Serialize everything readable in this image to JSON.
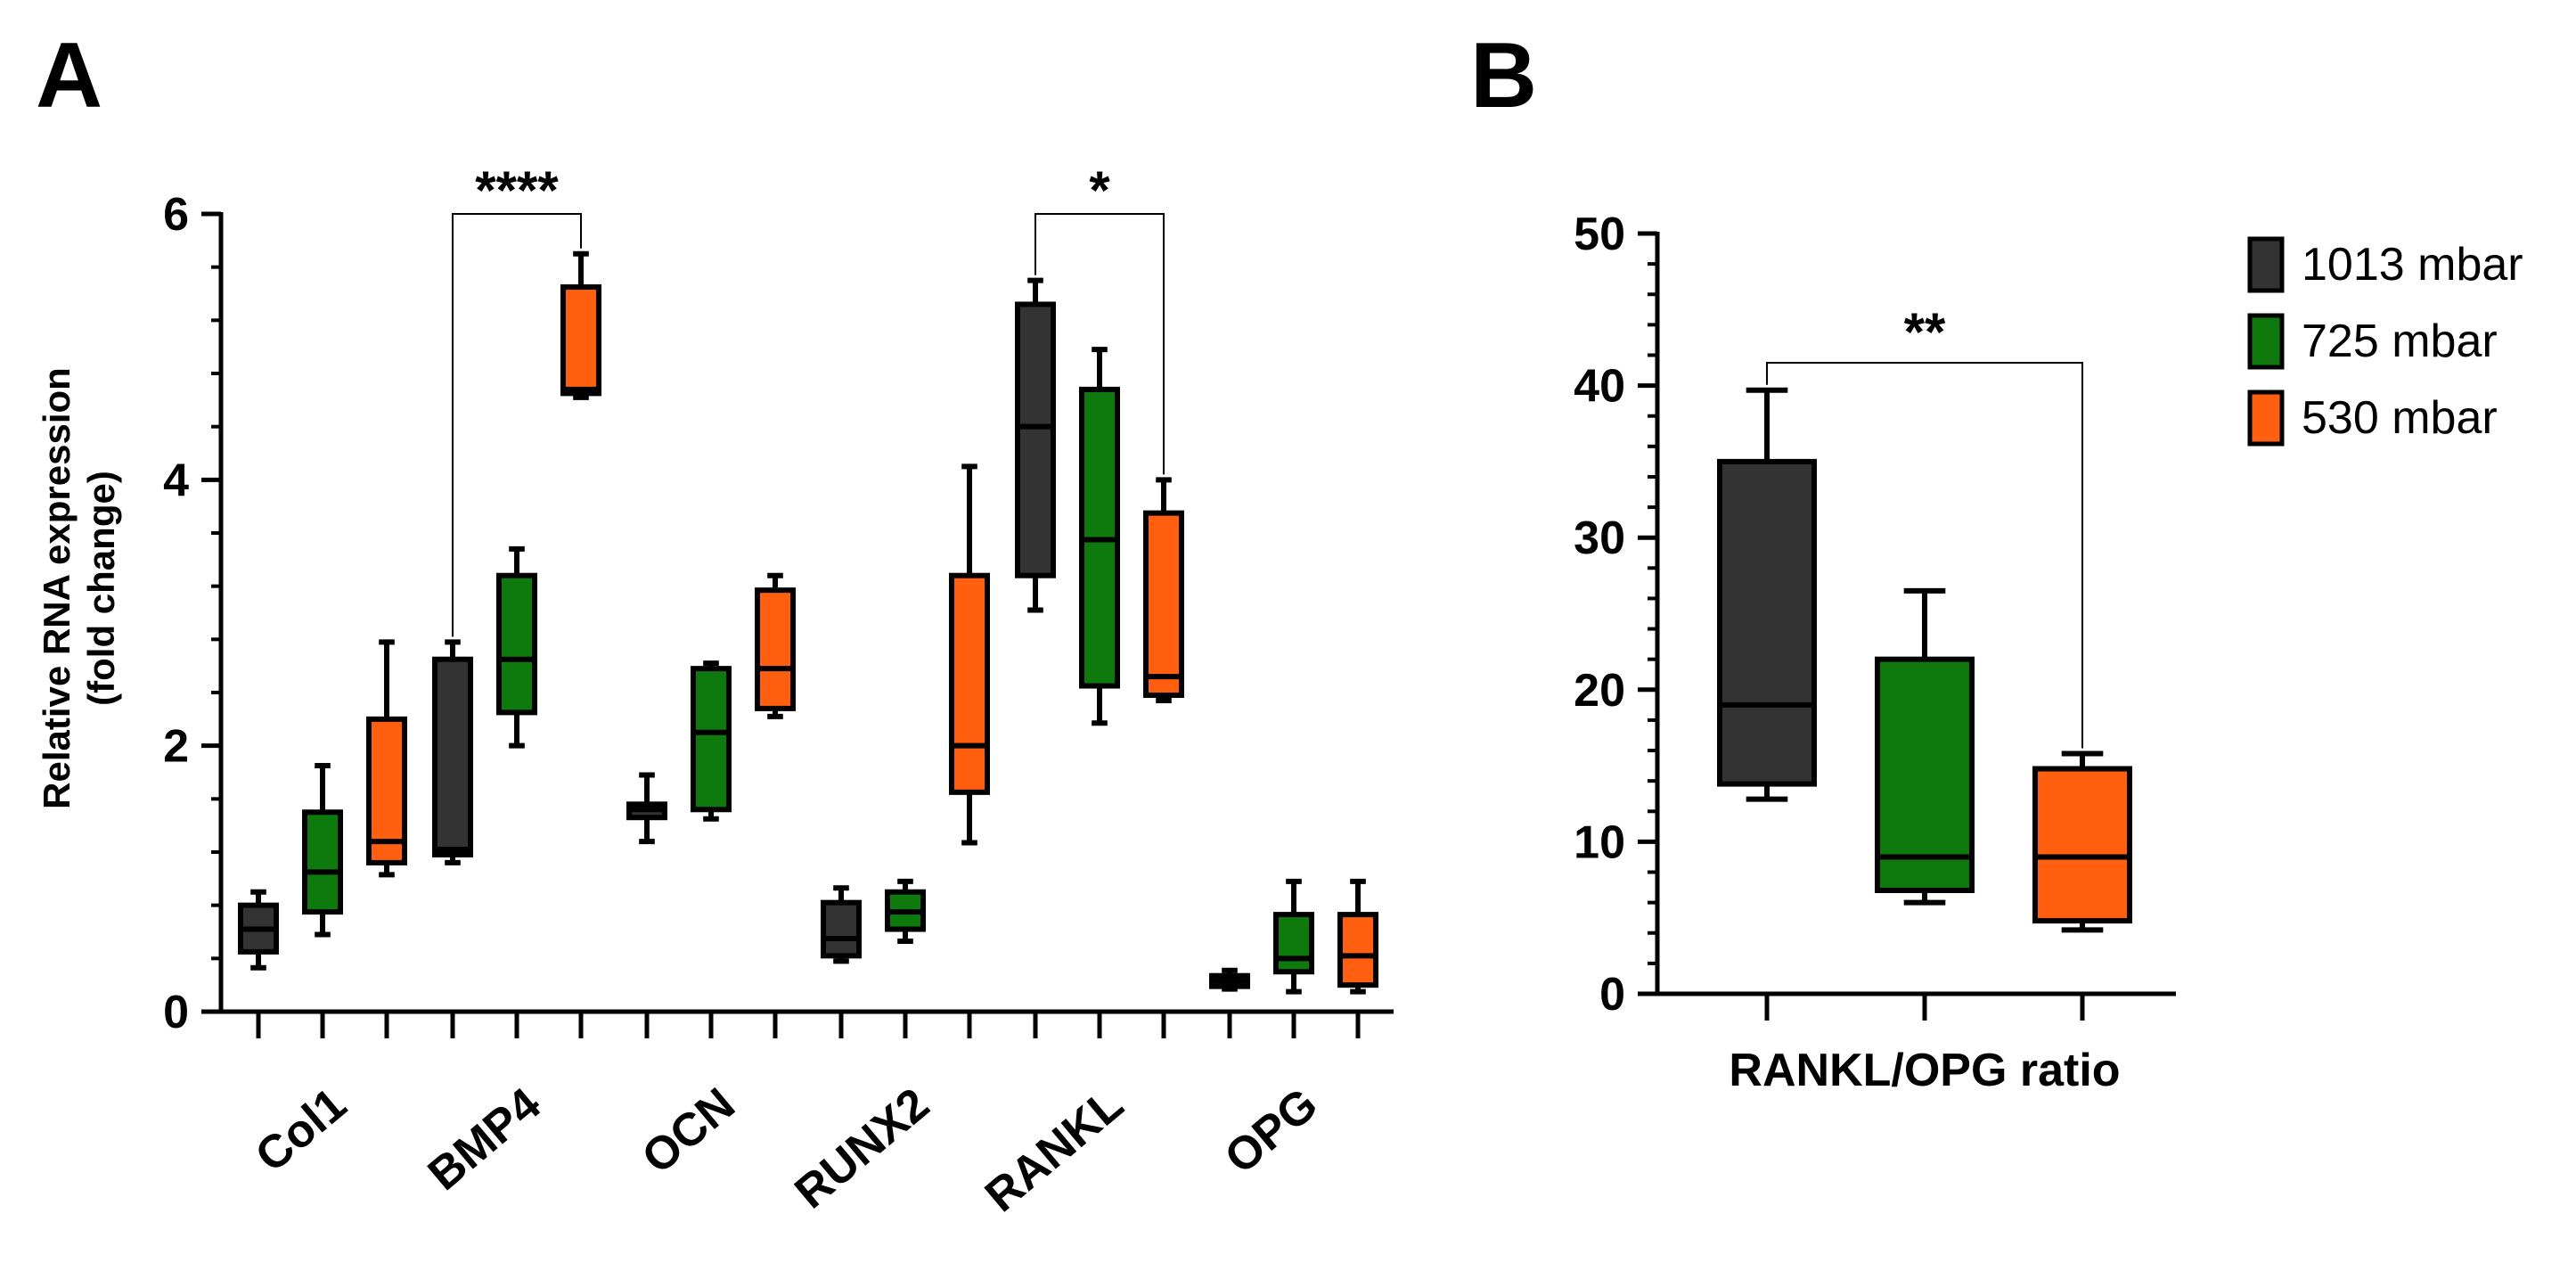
{
  "chart_data": [
    {
      "panel": "A",
      "type": "box",
      "title": "",
      "ylabel": "Relative RNA expression",
      "ylabel2": "(fold change)",
      "ylim": [
        0,
        6
      ],
      "yticks": [
        0,
        2,
        4,
        6
      ],
      "categories": [
        "Col1",
        "BMP4",
        "OCN",
        "RUNX2",
        "RANKL",
        "OPG"
      ],
      "series": [
        {
          "name": "1013 mbar",
          "color": "#333333",
          "boxes": [
            {
              "min": 0.33,
              "q1": 0.45,
              "median": 0.62,
              "q3": 0.8,
              "max": 0.9
            },
            {
              "min": 1.12,
              "q1": 1.18,
              "median": 1.22,
              "q3": 2.65,
              "max": 2.78
            },
            {
              "min": 1.28,
              "q1": 1.46,
              "median": 1.52,
              "q3": 1.56,
              "max": 1.78
            },
            {
              "min": 0.38,
              "q1": 0.42,
              "median": 0.55,
              "q3": 0.82,
              "max": 0.93
            },
            {
              "min": 3.02,
              "q1": 3.28,
              "median": 4.4,
              "q3": 5.32,
              "max": 5.5
            },
            {
              "min": 0.17,
              "q1": 0.19,
              "median": 0.23,
              "q3": 0.27,
              "max": 0.31
            }
          ]
        },
        {
          "name": "725 mbar",
          "color": "#0e7a0e",
          "boxes": [
            {
              "min": 0.58,
              "q1": 0.75,
              "median": 1.05,
              "q3": 1.5,
              "max": 1.85
            },
            {
              "min": 2.0,
              "q1": 2.25,
              "median": 2.65,
              "q3": 3.28,
              "max": 3.48
            },
            {
              "min": 1.45,
              "q1": 1.52,
              "median": 2.1,
              "q3": 2.58,
              "max": 2.62
            },
            {
              "min": 0.53,
              "q1": 0.62,
              "median": 0.75,
              "q3": 0.9,
              "max": 0.98
            },
            {
              "min": 2.17,
              "q1": 2.45,
              "median": 3.55,
              "q3": 4.68,
              "max": 4.98
            },
            {
              "min": 0.15,
              "q1": 0.3,
              "median": 0.4,
              "q3": 0.73,
              "max": 0.98
            }
          ]
        },
        {
          "name": "530 mbar",
          "color": "#ff5f0f",
          "boxes": [
            {
              "min": 1.03,
              "q1": 1.12,
              "median": 1.28,
              "q3": 2.2,
              "max": 2.78
            },
            {
              "min": 4.62,
              "q1": 4.65,
              "median": 4.68,
              "q3": 5.45,
              "max": 5.7
            },
            {
              "min": 2.22,
              "q1": 2.28,
              "median": 2.58,
              "q3": 3.17,
              "max": 3.28
            },
            {
              "min": 1.27,
              "q1": 1.65,
              "median": 2.0,
              "q3": 3.28,
              "max": 4.1
            },
            {
              "min": 2.34,
              "q1": 2.38,
              "median": 2.52,
              "q3": 3.75,
              "max": 4.0
            },
            {
              "min": 0.15,
              "q1": 0.2,
              "median": 0.42,
              "q3": 0.73,
              "max": 0.98
            }
          ]
        }
      ],
      "annotations": [
        {
          "text": "****",
          "category": "BMP4",
          "from_series": 0,
          "to_series": 2,
          "level": 6.0
        },
        {
          "text": "*",
          "category": "RANKL",
          "from_series": 0,
          "to_series": 2,
          "level": 6.0
        }
      ]
    },
    {
      "panel": "B",
      "type": "box",
      "title": "",
      "xlabel": "RANKL/OPG ratio",
      "ylabel": "",
      "ylim": [
        0,
        50
      ],
      "yticks": [
        0,
        10,
        20,
        30,
        40,
        50
      ],
      "series": [
        {
          "name": "1013 mbar",
          "color": "#333333",
          "box": {
            "min": 12.8,
            "q1": 13.8,
            "median": 19.0,
            "q3": 35.0,
            "max": 39.7
          }
        },
        {
          "name": "725 mbar",
          "color": "#0e7a0e",
          "box": {
            "min": 6.0,
            "q1": 6.8,
            "median": 9.0,
            "q3": 22.0,
            "max": 26.5
          }
        },
        {
          "name": "530 mbar",
          "color": "#ff5f0f",
          "box": {
            "min": 4.2,
            "q1": 4.8,
            "median": 9.0,
            "q3": 14.8,
            "max": 15.8
          }
        }
      ],
      "annotations": [
        {
          "text": "**",
          "from_series": 0,
          "to_series": 2,
          "level": 41.5
        }
      ],
      "legend": {
        "position": "right",
        "entries": [
          "1013 mbar",
          "725 mbar",
          "530 mbar"
        ]
      }
    }
  ],
  "panels": {
    "a_label": "A",
    "b_label": "B"
  }
}
